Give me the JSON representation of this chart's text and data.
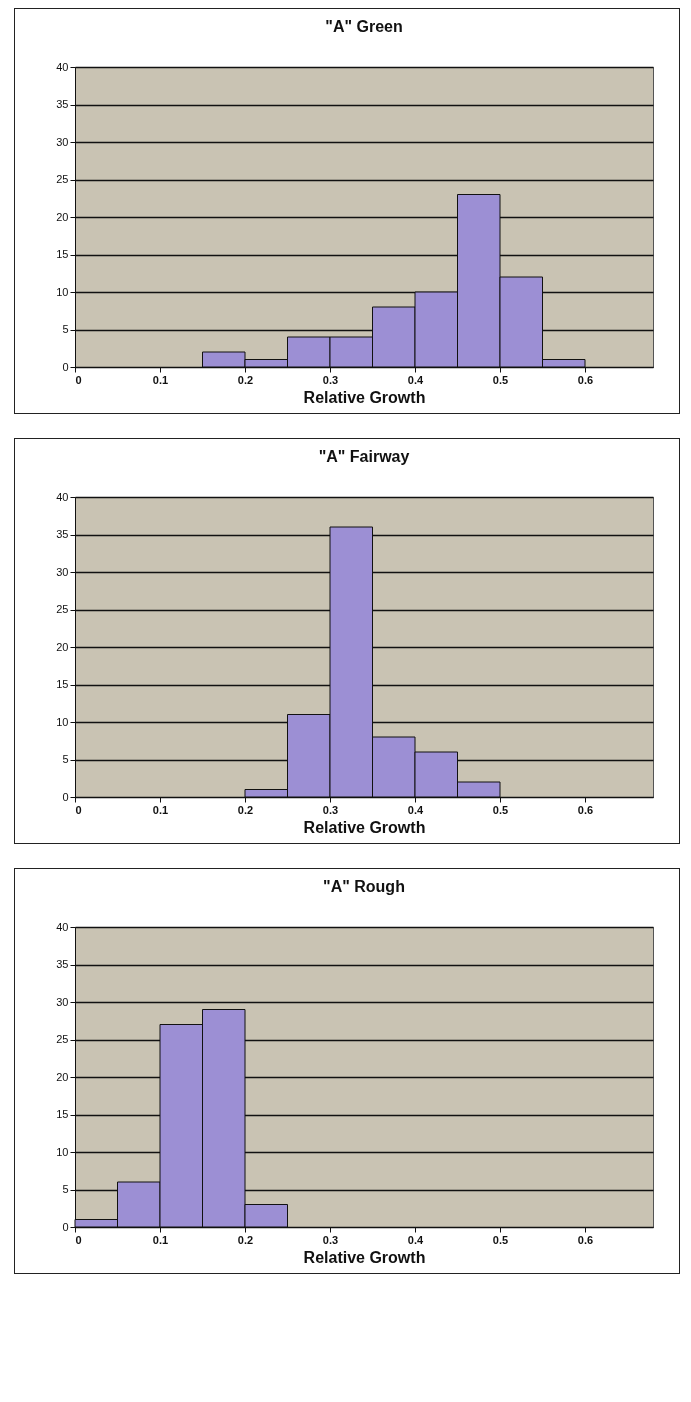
{
  "chart_data": [
    {
      "type": "histogram",
      "title": "\"A\" Green",
      "xlabel": "Relative Growth",
      "bins": [
        0.15,
        0.2,
        0.25,
        0.3,
        0.35,
        0.4,
        0.45,
        0.5,
        0.55,
        0.6
      ],
      "values": [
        2,
        1,
        4,
        4,
        8,
        10,
        23,
        12,
        1
      ],
      "color": "#9c8fd4",
      "xlim": [
        0,
        0.68
      ],
      "xticks": [
        0,
        0.1,
        0.2,
        0.3,
        0.4,
        0.5,
        0.6
      ],
      "ylim": [
        0,
        40
      ],
      "yticks": [
        0,
        5,
        10,
        15,
        20,
        25,
        30,
        35,
        40
      ],
      "grid": "y"
    },
    {
      "type": "histogram",
      "title": "\"A\" Fairway",
      "xlabel": "Relative Growth",
      "bins": [
        0.2,
        0.25,
        0.3,
        0.35,
        0.4,
        0.45,
        0.5
      ],
      "values": [
        1,
        11,
        36,
        8,
        6,
        2
      ],
      "color": "#9c8fd4",
      "xlim": [
        0,
        0.68
      ],
      "xticks": [
        0,
        0.1,
        0.2,
        0.3,
        0.4,
        0.5,
        0.6
      ],
      "ylim": [
        0,
        40
      ],
      "yticks": [
        0,
        5,
        10,
        15,
        20,
        25,
        30,
        35,
        40
      ],
      "grid": "y"
    },
    {
      "type": "histogram",
      "title": "\"A\" Rough",
      "xlabel": "Relative Growth",
      "bins": [
        0,
        0.05,
        0.1,
        0.15,
        0.2,
        0.25
      ],
      "values": [
        1,
        6,
        27,
        29,
        3
      ],
      "color": "#9c8fd4",
      "xlim": [
        0,
        0.68
      ],
      "xticks": [
        0,
        0.1,
        0.2,
        0.3,
        0.4,
        0.5,
        0.6
      ],
      "ylim": [
        0,
        40
      ],
      "yticks": [
        0,
        5,
        10,
        15,
        20,
        25,
        30,
        35,
        40
      ],
      "grid": "y"
    }
  ]
}
